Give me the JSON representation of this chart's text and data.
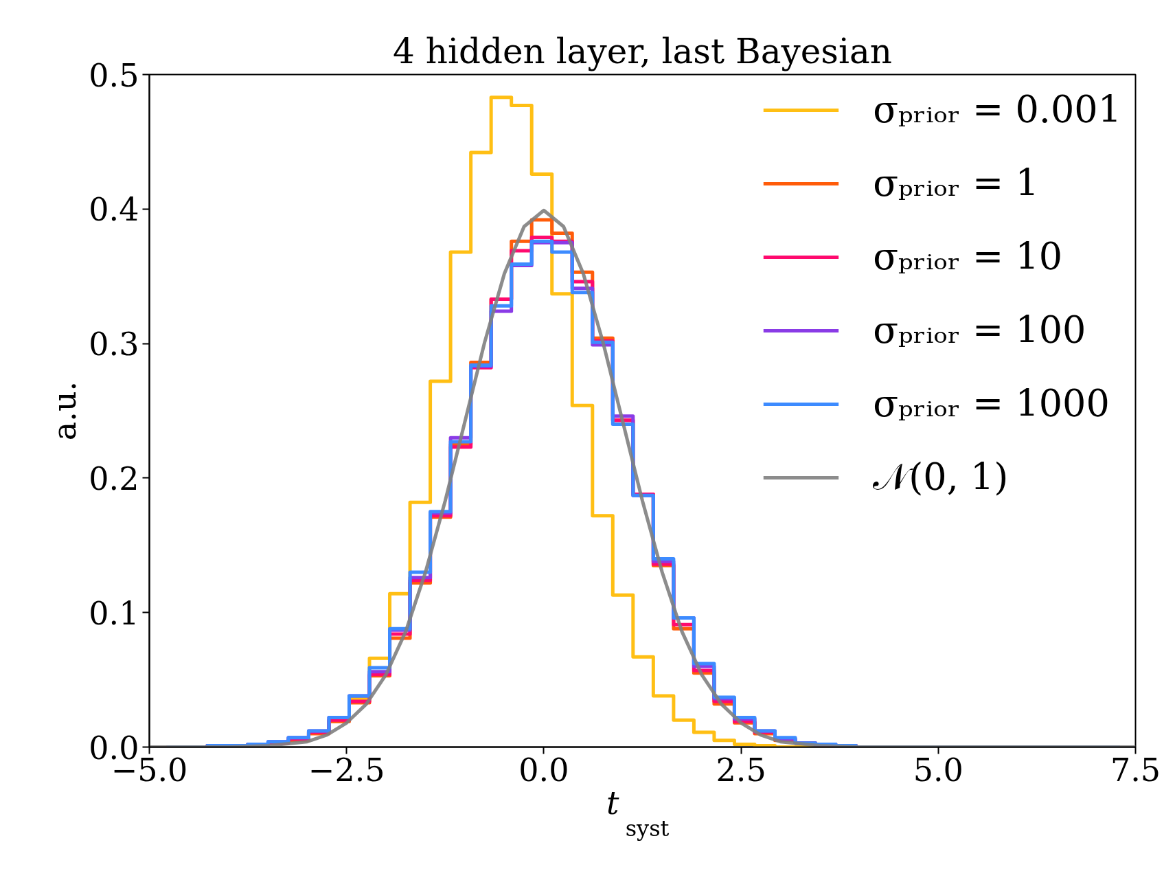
{
  "chart_data": {
    "type": "histogram",
    "title": "4 hidden layer, last Bayesian",
    "xlabel": "t$_{syst}$",
    "ylabel": "a.u.",
    "bins": [
      -4.78,
      -4.523,
      -4.266,
      -4.009,
      -3.752,
      -3.495,
      -3.238,
      -2.981,
      -2.724,
      -2.467,
      -2.21,
      -1.953,
      -1.696,
      -1.439,
      -1.182,
      -0.925,
      -0.668,
      -0.411,
      -0.154,
      0.103,
      0.36,
      0.617,
      0.874,
      1.131,
      1.388,
      1.645,
      1.902,
      2.159,
      2.416,
      2.673,
      2.93,
      3.187,
      3.444,
      3.701,
      3.958,
      4.215,
      4.472,
      4.729,
      4.986,
      5.243,
      5.5,
      5.757,
      6.014,
      6.271,
      6.528,
      6.785,
      7.042,
      7.299
    ],
    "series": [
      {
        "name": "σₚᵣᵢₒᵣ = 0.001",
        "color": "#ffbf14",
        "values": [
          0,
          0,
          0,
          0.001,
          0.002,
          0.003,
          0.005,
          0.011,
          0.02,
          0.036,
          0.066,
          0.114,
          0.182,
          0.272,
          0.368,
          0.442,
          0.483,
          0.477,
          0.426,
          0.337,
          0.254,
          0.172,
          0.113,
          0.067,
          0.038,
          0.02,
          0.011,
          0.005,
          0.002,
          0.001,
          0,
          0,
          0,
          0,
          0,
          0,
          0,
          0,
          0,
          0,
          0,
          0,
          0,
          0,
          0,
          0,
          0
        ]
      },
      {
        "name": "σₚᵣᵢₒᵣ = 1",
        "color": "#ff5c0a",
        "values": [
          0,
          0,
          0.001,
          0.001,
          0.002,
          0.003,
          0.005,
          0.01,
          0.019,
          0.033,
          0.053,
          0.081,
          0.122,
          0.171,
          0.225,
          0.286,
          0.333,
          0.376,
          0.392,
          0.382,
          0.353,
          0.304,
          0.243,
          0.188,
          0.135,
          0.088,
          0.055,
          0.032,
          0.018,
          0.01,
          0.005,
          0.003,
          0.001,
          0.001,
          0,
          0,
          0,
          0,
          0,
          0,
          0,
          0,
          0,
          0,
          0,
          0,
          0
        ]
      },
      {
        "name": "σₚᵣᵢₒᵣ = 10",
        "color": "#ff0a6e",
        "values": [
          0,
          0,
          0.001,
          0.001,
          0.002,
          0.003,
          0.006,
          0.011,
          0.02,
          0.034,
          0.054,
          0.084,
          0.124,
          0.172,
          0.223,
          0.282,
          0.333,
          0.369,
          0.379,
          0.376,
          0.346,
          0.302,
          0.243,
          0.188,
          0.136,
          0.091,
          0.057,
          0.034,
          0.019,
          0.011,
          0.006,
          0.003,
          0.001,
          0.001,
          0,
          0,
          0,
          0,
          0,
          0,
          0,
          0,
          0,
          0,
          0,
          0,
          0
        ]
      },
      {
        "name": "σₚᵣᵢₒᵣ = 100",
        "color": "#8a3be6",
        "values": [
          0,
          0,
          0.001,
          0.001,
          0.002,
          0.004,
          0.007,
          0.012,
          0.022,
          0.038,
          0.056,
          0.087,
          0.126,
          0.174,
          0.23,
          0.283,
          0.324,
          0.358,
          0.375,
          0.375,
          0.341,
          0.299,
          0.246,
          0.187,
          0.138,
          0.096,
          0.06,
          0.036,
          0.021,
          0.012,
          0.006,
          0.003,
          0.002,
          0.001,
          0,
          0,
          0,
          0,
          0,
          0,
          0,
          0,
          0,
          0,
          0,
          0,
          0
        ]
      },
      {
        "name": "σₚᵣᵢₒᵣ = 1000",
        "color": "#3d8bff",
        "values": [
          0,
          0,
          0.001,
          0.001,
          0.002,
          0.004,
          0.007,
          0.012,
          0.022,
          0.038,
          0.059,
          0.088,
          0.13,
          0.175,
          0.227,
          0.284,
          0.328,
          0.359,
          0.376,
          0.368,
          0.338,
          0.301,
          0.24,
          0.187,
          0.14,
          0.096,
          0.062,
          0.037,
          0.022,
          0.012,
          0.007,
          0.003,
          0.002,
          0.001,
          0,
          0,
          0,
          0,
          0,
          0,
          0,
          0,
          0,
          0,
          0,
          0,
          0
        ]
      },
      {
        "name": "𝒩(0, 1)",
        "type": "line",
        "color": "#808080",
        "x": [
          -5,
          -4,
          -3.5,
          -3,
          -2.75,
          -2.5,
          -2.25,
          -2,
          -1.75,
          -1.5,
          -1.25,
          -1,
          -0.75,
          -0.5,
          -0.25,
          0,
          0.25,
          0.5,
          0.75,
          1,
          1.25,
          1.5,
          1.75,
          2,
          2.25,
          2.5,
          2.75,
          3,
          3.5,
          4,
          5,
          7.5
        ],
        "values": [
          0,
          0,
          0.001,
          0.004,
          0.009,
          0.018,
          0.032,
          0.054,
          0.086,
          0.13,
          0.183,
          0.242,
          0.301,
          0.352,
          0.387,
          0.399,
          0.387,
          0.352,
          0.301,
          0.242,
          0.183,
          0.13,
          0.086,
          0.054,
          0.032,
          0.018,
          0.009,
          0.004,
          0.001,
          0,
          0,
          0
        ]
      }
    ],
    "xlim": [
      -5,
      7.5
    ],
    "ylim": [
      0,
      0.5
    ],
    "xticks": [
      {
        "value": -5,
        "label": "−5.0"
      },
      {
        "value": -2.5,
        "label": "−2.5"
      },
      {
        "value": 0,
        "label": "0.0"
      },
      {
        "value": 2.5,
        "label": "2.5"
      },
      {
        "value": 5,
        "label": "5.0"
      },
      {
        "value": 7.5,
        "label": "7.5"
      }
    ],
    "yticks": [
      {
        "value": 0,
        "label": "0.0"
      },
      {
        "value": 0.1,
        "label": "0.1"
      },
      {
        "value": 0.2,
        "label": "0.2"
      },
      {
        "value": 0.3,
        "label": "0.3"
      },
      {
        "value": 0.4,
        "label": "0.4"
      },
      {
        "value": 0.5,
        "label": "0.5"
      }
    ],
    "legend": "top right",
    "grid": false,
    "line_style": "solid"
  }
}
